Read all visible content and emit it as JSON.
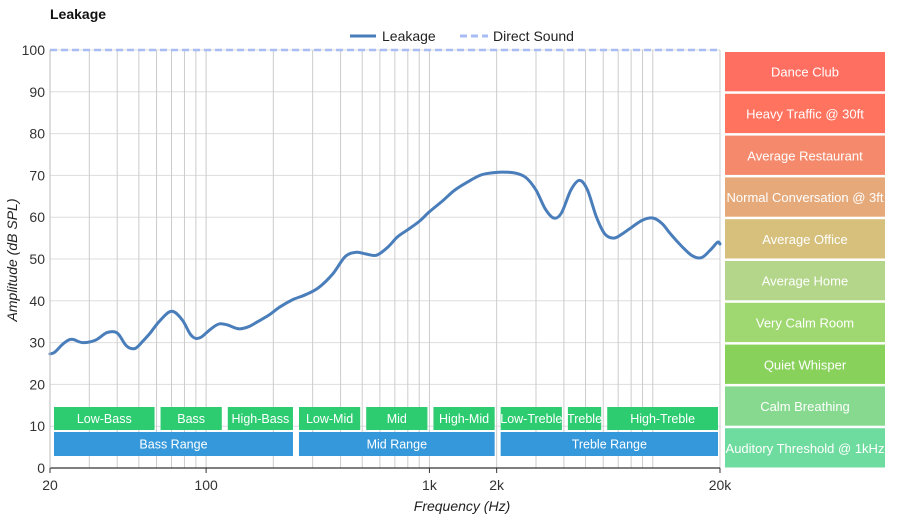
{
  "chart_data": {
    "type": "line",
    "title": "Leakage",
    "xlabel": "Frequency (Hz)",
    "ylabel": "Amplitude (dB SPL)",
    "xscale": "log",
    "xlim": [
      20,
      20000
    ],
    "ylim": [
      0,
      100
    ],
    "yticks": [
      0,
      10,
      20,
      30,
      40,
      50,
      60,
      70,
      80,
      90,
      100
    ],
    "xticks": [
      {
        "value": 20,
        "label": "20"
      },
      {
        "value": 100,
        "label": "100"
      },
      {
        "value": 1000,
        "label": "1k"
      },
      {
        "value": 2000,
        "label": "2k"
      },
      {
        "value": 20000,
        "label": "20k"
      }
    ],
    "legend": [
      {
        "name": "Leakage",
        "color": "#4a7ebb",
        "style": "solid"
      },
      {
        "name": "Direct Sound",
        "color": "#a9bdf5",
        "style": "dashed"
      }
    ],
    "series": [
      {
        "name": "Leakage",
        "color": "#4a7ebb",
        "x": [
          20,
          21,
          23,
          25,
          28,
          32,
          36,
          40,
          44,
          48,
          52,
          56,
          62,
          70,
          78,
          85,
          90,
          95,
          100,
          107,
          115,
          125,
          140,
          155,
          170,
          190,
          215,
          245,
          280,
          320,
          370,
          420,
          470,
          520,
          580,
          650,
          720,
          800,
          900,
          1000,
          1150,
          1300,
          1500,
          1700,
          1900,
          2100,
          2400,
          2700,
          3000,
          3300,
          3600,
          3900,
          4300,
          4700,
          5100,
          5600,
          6100,
          6700,
          7300,
          8000,
          9000,
          10000,
          11000,
          12000,
          13500,
          15000,
          16500,
          18000,
          19500,
          20000
        ],
        "y": [
          27.3,
          27.7,
          29.8,
          30.8,
          30.0,
          30.6,
          32.4,
          32.3,
          29.2,
          28.6,
          30.3,
          32.2,
          35.2,
          37.5,
          35.5,
          32.0,
          31.0,
          31.3,
          32.3,
          33.6,
          34.5,
          34.2,
          33.3,
          33.8,
          35.0,
          36.5,
          38.6,
          40.3,
          41.5,
          43.2,
          46.5,
          50.6,
          51.6,
          51.2,
          50.9,
          52.8,
          55.3,
          57.0,
          59.0,
          61.3,
          64.0,
          66.5,
          68.6,
          70.1,
          70.6,
          70.8,
          70.6,
          69.5,
          66.5,
          62.0,
          59.8,
          61.0,
          66.5,
          68.8,
          66.5,
          60.0,
          56.0,
          55.0,
          56.0,
          57.5,
          59.3,
          59.8,
          58.5,
          56.0,
          53.0,
          50.8,
          50.3,
          52.0,
          54.0,
          53.6
        ]
      },
      {
        "name": "Direct Sound",
        "color": "#a9bdf5",
        "x": [
          20,
          20000
        ],
        "y": [
          100,
          100
        ]
      }
    ],
    "bands": [
      {
        "label": "Low-Bass",
        "from": 20,
        "to": 60,
        "row": 1,
        "color": "#2ecc71"
      },
      {
        "label": "Bass",
        "from": 60,
        "to": 120,
        "row": 1,
        "color": "#2ecc71"
      },
      {
        "label": "High-Bass",
        "from": 120,
        "to": 250,
        "row": 1,
        "color": "#2ecc71"
      },
      {
        "label": "Low-Mid",
        "from": 250,
        "to": 500,
        "row": 1,
        "color": "#2ecc71"
      },
      {
        "label": "Mid",
        "from": 500,
        "to": 1000,
        "row": 1,
        "color": "#2ecc71"
      },
      {
        "label": "High-Mid",
        "from": 1000,
        "to": 2000,
        "row": 1,
        "color": "#2ecc71"
      },
      {
        "label": "Low-Treble",
        "from": 2000,
        "to": 4000,
        "row": 1,
        "color": "#2ecc71"
      },
      {
        "label": "Treble",
        "from": 4000,
        "to": 6000,
        "row": 1,
        "color": "#2ecc71"
      },
      {
        "label": "High-Treble",
        "from": 6000,
        "to": 20000,
        "row": 1,
        "color": "#2ecc71"
      },
      {
        "label": "Bass Range",
        "from": 20,
        "to": 250,
        "row": 2,
        "color": "#3498db"
      },
      {
        "label": "Mid Range",
        "from": 250,
        "to": 2000,
        "row": 2,
        "color": "#3498db"
      },
      {
        "label": "Treble Range",
        "from": 2000,
        "to": 20000,
        "row": 2,
        "color": "#3498db"
      }
    ],
    "reference_levels": [
      {
        "label": "Dance Club",
        "from": 90,
        "to": 100,
        "color": "#ff6f61"
      },
      {
        "label": "Heavy Traffic @ 30ft",
        "from": 80,
        "to": 90,
        "color": "#ff735f"
      },
      {
        "label": "Average Restaurant",
        "from": 70,
        "to": 80,
        "color": "#f5896b"
      },
      {
        "label": "Normal Conversation @ 3ft",
        "from": 60,
        "to": 70,
        "color": "#e6a97a"
      },
      {
        "label": "Average Office",
        "from": 50,
        "to": 60,
        "color": "#d6c07c"
      },
      {
        "label": "Average Home",
        "from": 40,
        "to": 50,
        "color": "#b3d68a"
      },
      {
        "label": "Very Calm Room",
        "from": 30,
        "to": 40,
        "color": "#9fd871"
      },
      {
        "label": "Quiet Whisper",
        "from": 20,
        "to": 30,
        "color": "#88d15a"
      },
      {
        "label": "Calm Breathing",
        "from": 10,
        "to": 20,
        "color": "#86d98e"
      },
      {
        "label": "Auditory Threshold @ 1kHz",
        "from": 0,
        "to": 10,
        "color": "#6fdc9f"
      }
    ],
    "grid": true,
    "legend_position": "top-center"
  }
}
